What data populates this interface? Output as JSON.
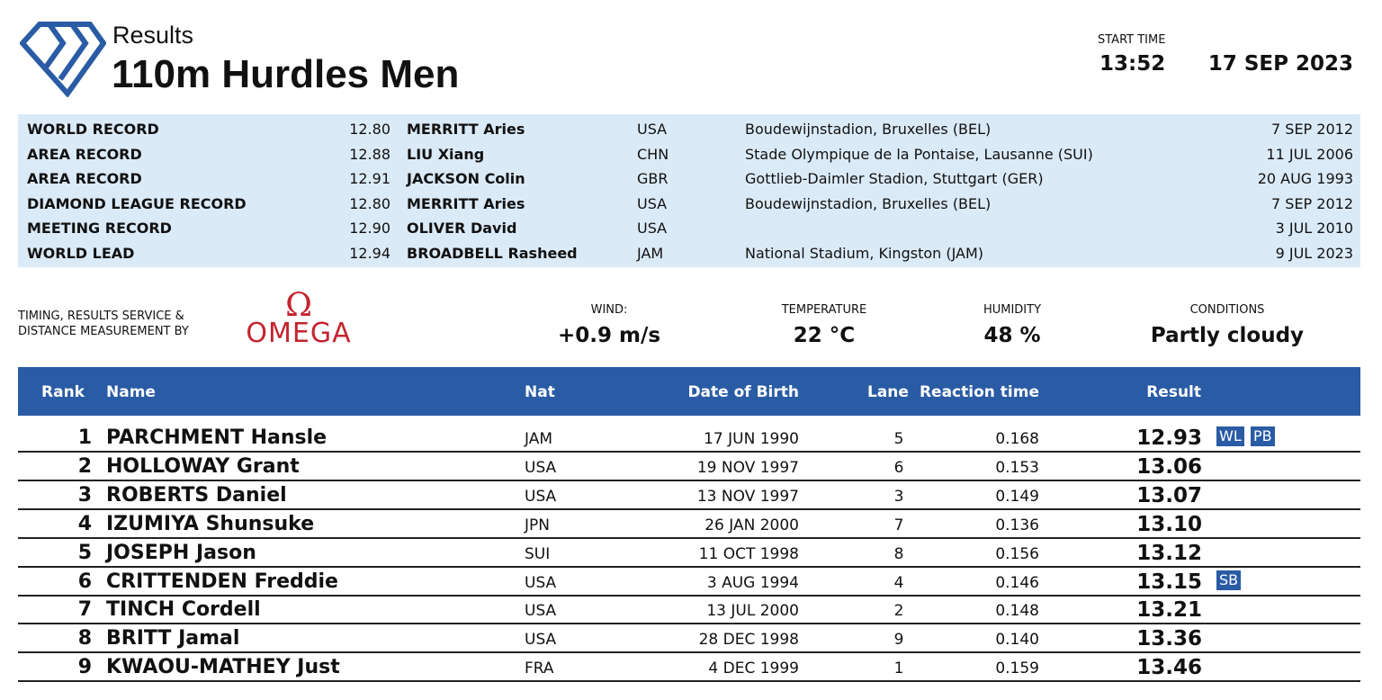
{
  "header": {
    "subtitle": "Results",
    "title": "110m Hurdles Men",
    "start_time_label": "START TIME",
    "start_time": "13:52",
    "date": "17 SEP 2023"
  },
  "records": [
    {
      "label": "WORLD RECORD",
      "value": "12.80",
      "name": "MERRITT Aries",
      "nat": "USA",
      "venue": "Boudewijnstadion, Bruxelles (BEL)",
      "date": "7 SEP 2012"
    },
    {
      "label": "AREA RECORD",
      "value": "12.88",
      "name": "LIU Xiang",
      "nat": "CHN",
      "venue": "Stade Olympique de la Pontaise, Lausanne (SUI)",
      "date": "11 JUL 2006"
    },
    {
      "label": "AREA RECORD",
      "value": "12.91",
      "name": "JACKSON Colin",
      "nat": "GBR",
      "venue": "Gottlieb-Daimler Stadion, Stuttgart (GER)",
      "date": "20 AUG 1993"
    },
    {
      "label": "DIAMOND LEAGUE RECORD",
      "value": "12.80",
      "name": "MERRITT Aries",
      "nat": "USA",
      "venue": "Boudewijnstadion, Bruxelles (BEL)",
      "date": "7 SEP 2012"
    },
    {
      "label": "MEETING RECORD",
      "value": "12.90",
      "name": "OLIVER David",
      "nat": "USA",
      "venue": "",
      "date": "3 JUL 2010"
    },
    {
      "label": "WORLD LEAD",
      "value": "12.94",
      "name": "BROADBELL Rasheed",
      "nat": "JAM",
      "venue": "National Stadium, Kingston (JAM)",
      "date": "9 JUL 2023"
    }
  ],
  "timing": {
    "line1": "TIMING, RESULTS SERVICE &",
    "line2": "DISTANCE MEASUREMENT BY",
    "brand": "OMEGA",
    "brand_symbol": "Ω"
  },
  "conditions": {
    "wind_label": "WIND:",
    "wind": "+0.9 m/s",
    "temp_label": "TEMPERATURE",
    "temp": "22 °C",
    "humidity_label": "HUMIDITY",
    "humidity": "48 %",
    "conditions_label": "CONDITIONS",
    "conditions": "Partly cloudy"
  },
  "columns": {
    "rank": "Rank",
    "name": "Name",
    "nat": "Nat",
    "dob": "Date of Birth",
    "lane": "Lane",
    "reaction": "Reaction time",
    "result": "Result"
  },
  "results": [
    {
      "rank": "1",
      "name": "PARCHMENT Hansle",
      "nat": "JAM",
      "dob": "17 JUN 1990",
      "lane": "5",
      "reaction": "0.168",
      "result": "12.93",
      "badges": [
        "WL",
        "PB"
      ]
    },
    {
      "rank": "2",
      "name": "HOLLOWAY Grant",
      "nat": "USA",
      "dob": "19 NOV 1997",
      "lane": "6",
      "reaction": "0.153",
      "result": "13.06",
      "badges": []
    },
    {
      "rank": "3",
      "name": "ROBERTS Daniel",
      "nat": "USA",
      "dob": "13 NOV 1997",
      "lane": "3",
      "reaction": "0.149",
      "result": "13.07",
      "badges": []
    },
    {
      "rank": "4",
      "name": "IZUMIYA Shunsuke",
      "nat": "JPN",
      "dob": "26 JAN 2000",
      "lane": "7",
      "reaction": "0.136",
      "result": "13.10",
      "badges": []
    },
    {
      "rank": "5",
      "name": "JOSEPH Jason",
      "nat": "SUI",
      "dob": "11 OCT 1998",
      "lane": "8",
      "reaction": "0.156",
      "result": "13.12",
      "badges": []
    },
    {
      "rank": "6",
      "name": "CRITTENDEN Freddie",
      "nat": "USA",
      "dob": "3 AUG 1994",
      "lane": "4",
      "reaction": "0.146",
      "result": "13.15",
      "badges": [
        "SB"
      ]
    },
    {
      "rank": "7",
      "name": "TINCH Cordell",
      "nat": "USA",
      "dob": "13 JUL 2000",
      "lane": "2",
      "reaction": "0.148",
      "result": "13.21",
      "badges": []
    },
    {
      "rank": "8",
      "name": "BRITT Jamal",
      "nat": "USA",
      "dob": "28 DEC 1998",
      "lane": "9",
      "reaction": "0.140",
      "result": "13.36",
      "badges": []
    },
    {
      "rank": "9",
      "name": "KWAOU-MATHEY Just",
      "nat": "FRA",
      "dob": "4 DEC 1999",
      "lane": "1",
      "reaction": "0.159",
      "result": "13.46",
      "badges": []
    }
  ],
  "colors": {
    "brand_blue": "#2a5ba5",
    "records_bg": "#dbeaf7",
    "omega_red": "#c4242f"
  }
}
